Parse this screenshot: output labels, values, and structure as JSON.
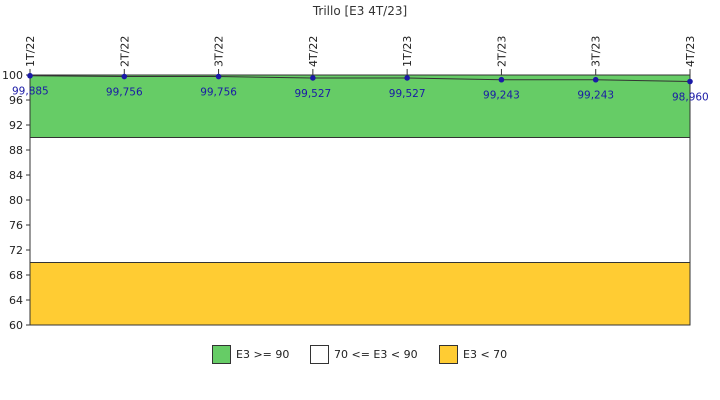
{
  "chart_data": {
    "type": "line",
    "title": "Trillo [E3 4T/23]",
    "categories": [
      "1T/22",
      "2T/22",
      "3T/22",
      "4T/22",
      "1T/23",
      "2T/23",
      "3T/23",
      "4T/23"
    ],
    "series": [
      {
        "values": [
          99.885,
          99.756,
          99.756,
          99.527,
          99.527,
          99.243,
          99.243,
          98.96
        ],
        "labels": [
          "99,885",
          "99,756",
          "99,756",
          "99,527",
          "99,527",
          "99,243",
          "99,243",
          "98,960"
        ],
        "color": "#1a1aa6"
      }
    ],
    "ylim": [
      60,
      100
    ],
    "yticks": [
      60,
      64,
      68,
      72,
      76,
      80,
      84,
      88,
      92,
      96,
      100
    ],
    "bands": [
      {
        "from": 90,
        "to": 100,
        "color": "#66cc66"
      },
      {
        "from": 70,
        "to": 90,
        "color": "#ffffff"
      },
      {
        "from": 60,
        "to": 70,
        "color": "#ffcc33"
      }
    ],
    "grid": false,
    "legend": {
      "position": "bottom",
      "items": [
        {
          "label": "E3 >= 90",
          "color": "#66cc66"
        },
        {
          "label": "70 <= E3 < 90",
          "color": "#ffffff"
        },
        {
          "label": "E3 < 70",
          "color": "#ffcc33"
        }
      ]
    }
  }
}
